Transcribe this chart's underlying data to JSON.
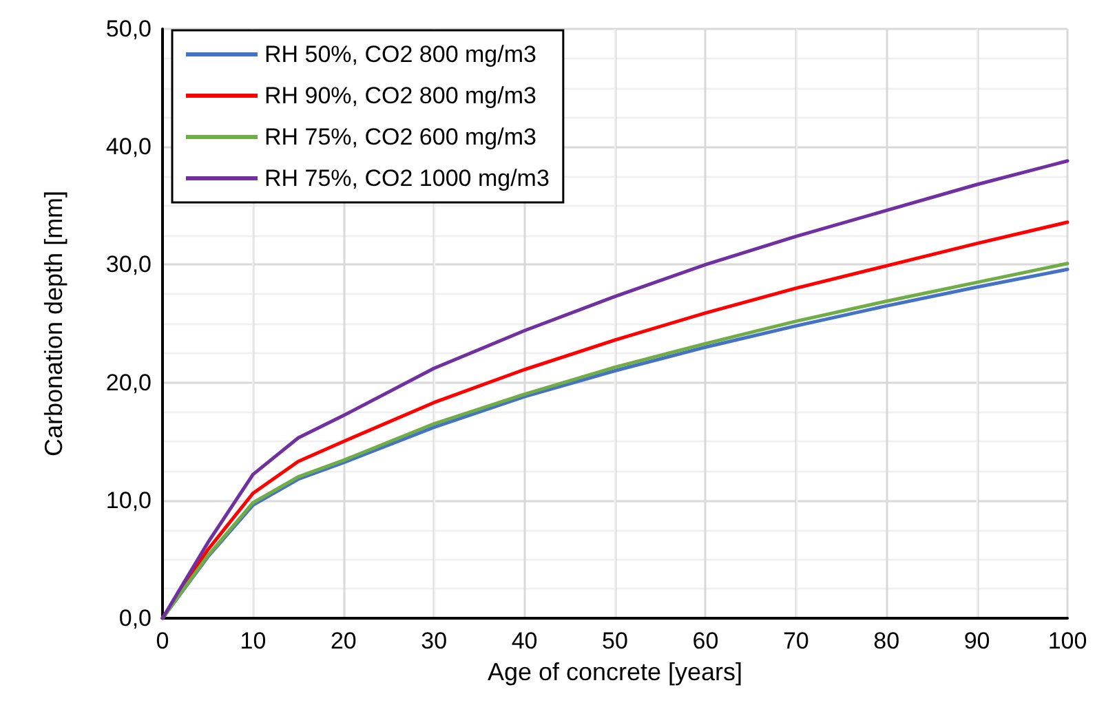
{
  "chart_data": {
    "type": "line",
    "xlabel": "Age of concrete [years]",
    "ylabel": "Carbonation depth [mm]",
    "x": [
      0,
      5,
      10,
      15,
      20,
      30,
      40,
      50,
      60,
      70,
      80,
      90,
      100
    ],
    "series": [
      {
        "name": "RH 50%, CO2 800 mg/m3",
        "color": "#4472c4",
        "values": [
          0,
          5.2,
          9.6,
          11.8,
          13.2,
          16.2,
          18.8,
          21.0,
          23.0,
          24.8,
          26.5,
          28.1,
          29.6
        ]
      },
      {
        "name": "RH 90%, CO2 800 mg/m3",
        "color": "#ff0000",
        "values": [
          0,
          5.8,
          10.6,
          13.3,
          15.0,
          18.3,
          21.1,
          23.6,
          25.9,
          28.0,
          29.9,
          31.8,
          33.6
        ]
      },
      {
        "name": "RH 75%, CO2 600 mg/m3",
        "color": "#70ad47",
        "values": [
          0,
          5.3,
          9.8,
          12.0,
          13.4,
          16.5,
          19.0,
          21.3,
          23.3,
          25.2,
          26.9,
          28.5,
          30.1
        ]
      },
      {
        "name": "RH 75%, CO2 1000 mg/m3",
        "color": "#7030a0",
        "values": [
          0,
          6.4,
          12.2,
          15.3,
          17.2,
          21.2,
          24.4,
          27.3,
          30.0,
          32.4,
          34.6,
          36.8,
          38.8
        ]
      }
    ],
    "xlim": [
      0,
      100
    ],
    "xticks": [
      0,
      10,
      20,
      30,
      40,
      50,
      60,
      70,
      80,
      90,
      100
    ],
    "ylim": [
      0,
      50
    ],
    "yticks": [
      {
        "value": 0,
        "label": "0,0"
      },
      {
        "value": 10,
        "label": "10,0"
      },
      {
        "value": 20,
        "label": "20,0"
      },
      {
        "value": 30,
        "label": "30,0"
      },
      {
        "value": 40,
        "label": "40,0"
      },
      {
        "value": 50,
        "label": "50,0"
      }
    ],
    "grid": true,
    "legend": "top left",
    "marker": "none",
    "line_style": "solid"
  }
}
